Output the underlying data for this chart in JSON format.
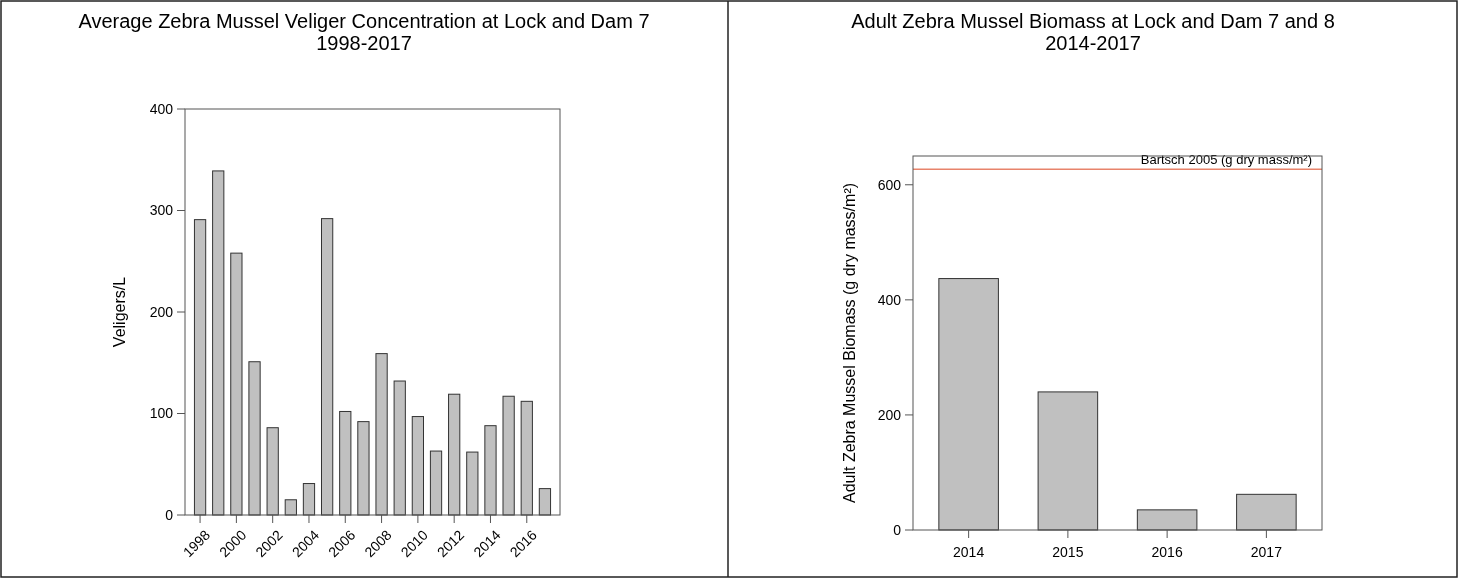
{
  "chart_data": [
    {
      "type": "bar",
      "title": "Average Zebra Mussel Veliger Concentration at Lock and Dam 7\n1998-2017",
      "ylabel": "Veligers/L",
      "categories": [
        "1998",
        null,
        "2000",
        null,
        "2002",
        null,
        "2004",
        null,
        "2006",
        null,
        "2008",
        null,
        "2010",
        null,
        "2012",
        null,
        "2014",
        null,
        "2016",
        null
      ],
      "values": [
        291,
        339,
        258,
        151,
        86,
        15,
        31,
        292,
        102,
        92,
        159,
        132,
        97,
        63,
        119,
        62,
        88,
        117,
        112,
        26
      ],
      "color": "#c0c0c0",
      "ylim": [
        0,
        400
      ],
      "yticks": [
        0,
        100,
        200,
        300,
        400
      ],
      "grid": false
    },
    {
      "type": "bar",
      "title": "Adult Zebra Mussel Biomass at Lock and Dam 7 and 8\n2014-2017",
      "ylabel": "Adult Zebra Mussel Biomass (g dry mass/m²)",
      "categories": [
        "2014",
        "2015",
        "2016",
        "2017"
      ],
      "values": [
        437,
        240,
        35,
        62
      ],
      "color": "#c0c0c0",
      "ylim": [
        0,
        650
      ],
      "yticks": [
        0,
        200,
        400,
        600
      ],
      "grid": false,
      "ref_lines": [
        {
          "axis": "y",
          "value": 627,
          "label": "Bartsch 2005 (g dry mass/m²)",
          "color": "#e8836b"
        }
      ]
    }
  ]
}
